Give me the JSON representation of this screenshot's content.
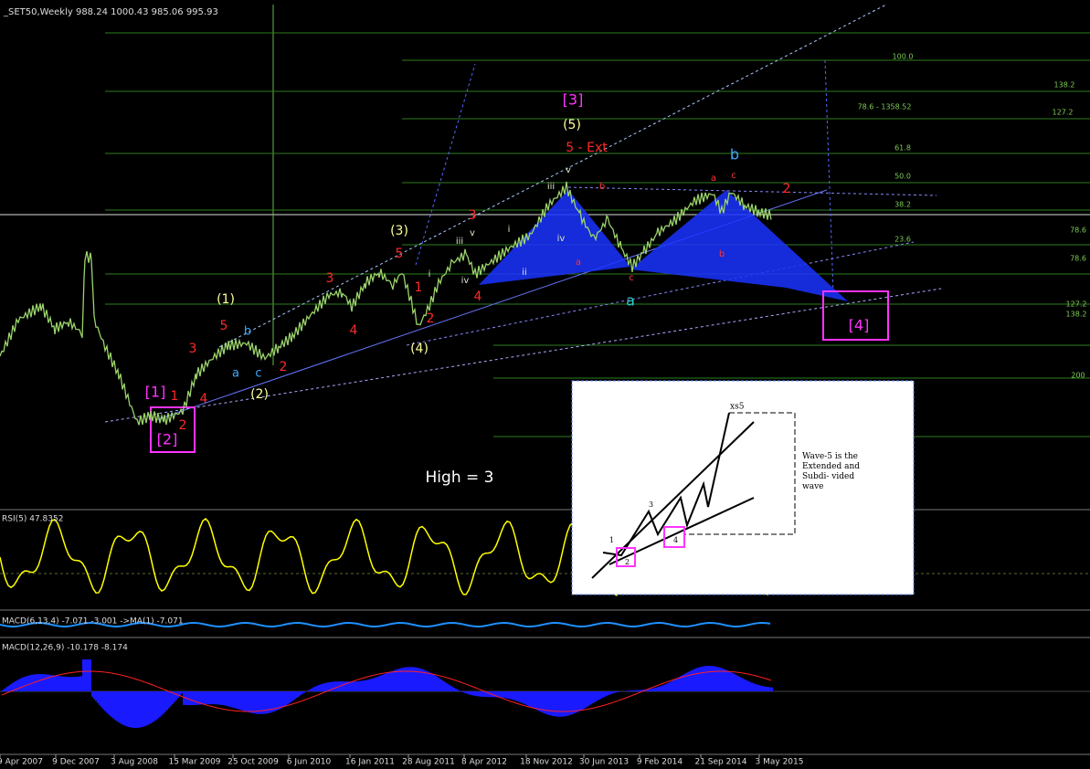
{
  "header": {
    "title": "_SET50,Weekly  988.24 1000.43 985.06 995.93"
  },
  "wave_labels": [
    {
      "color": "#ff33ff",
      "size": 16,
      "labels": [
        "[3]",
        "[1]",
        "[2]",
        "[4]"
      ]
    },
    {
      "color": "#ffff99",
      "size": 14,
      "labels": [
        "(5)",
        "(3)",
        "(1)",
        "(2)",
        "(4)"
      ]
    },
    {
      "color": "#ff2a2a",
      "size": 14,
      "labels": [
        "5 - Ext",
        "5",
        "5",
        "3",
        "3",
        "3",
        "1",
        "1",
        "2",
        "2",
        "2",
        "2",
        "4",
        "4",
        "4"
      ]
    },
    {
      "color": "#ff3333",
      "size": 10,
      "labels": [
        "a",
        "c",
        "b",
        "a",
        "c",
        "b"
      ]
    },
    {
      "color": "#3fa9ff",
      "size": 16,
      "labels": [
        "b"
      ]
    },
    {
      "color": "#3fa9ff",
      "size": 13,
      "labels": [
        "a",
        "b",
        "c"
      ]
    },
    {
      "color": "#33cccc",
      "size": 16,
      "labels": [
        "a"
      ]
    },
    {
      "color": "#d8e8c8",
      "size": 10,
      "labels": [
        "v",
        "iii",
        "i",
        "ii",
        "iv",
        "iii",
        "v",
        "i",
        "iv"
      ]
    }
  ],
  "fib_levels": [
    "100.0",
    "138.2",
    "78.6 - 1358.52",
    "127.2",
    "61.8",
    "50.0",
    "38.2",
    "78.6",
    "23.6",
    "78.6",
    "127.2",
    "138.2",
    "200"
  ],
  "note": "High = 3",
  "indicators": {
    "rsi": "RSI(5) 47.8352",
    "macd_small": "MACD(6,13,4) -7.071 -3.001 ->MA(1) -7.071",
    "macd": "MACD(12,26,9) -10.178 -8.174"
  },
  "dates": [
    "9 Apr 2007",
    "9 Dec 2007",
    "3 Aug 2008",
    "15 Mar 2009",
    "25 Oct 2009",
    "6 Jun 2010",
    "16 Jan 2011",
    "28 Aug 2011",
    "8 Apr 2012",
    "18 Nov 2012",
    "30 Jun 2013",
    "9 Feb 2014",
    "21 Sep 2014",
    "3 May 2015"
  ],
  "inset": {
    "top_label": "xs5",
    "caption": "Wave-5 is the Extended and Subdi- vided wave",
    "waves": [
      "1",
      "2",
      "3",
      "4"
    ]
  }
}
